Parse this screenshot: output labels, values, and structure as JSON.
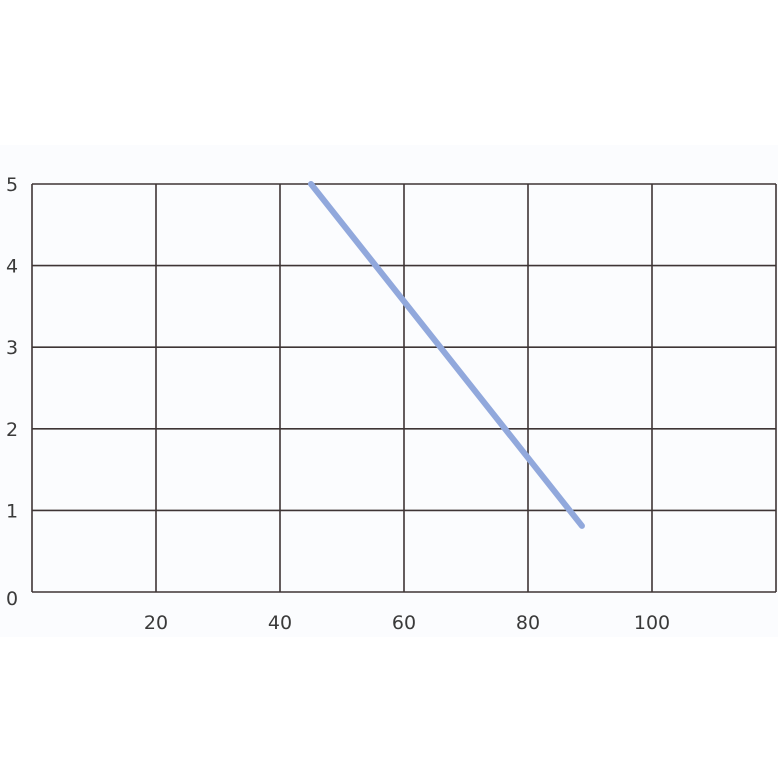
{
  "chart_data": {
    "type": "line",
    "title": "",
    "xlabel": "",
    "ylabel": "",
    "xlim": [
      0,
      120
    ],
    "ylim": [
      0,
      5
    ],
    "x_ticks": [
      "20",
      "40",
      "60",
      "80",
      "100"
    ],
    "x_tick_values": [
      20,
      40,
      60,
      80,
      100
    ],
    "y_ticks": [
      "0",
      "1",
      "2",
      "3",
      "4",
      "5"
    ],
    "y_tick_values": [
      0,
      1,
      2,
      3,
      4,
      5
    ],
    "grid": true,
    "series": [
      {
        "x": [
          45,
          88.7
        ],
        "y": [
          5,
          0.81
        ],
        "color": "#91a8dc"
      }
    ],
    "grid_color": "#3e3535"
  }
}
